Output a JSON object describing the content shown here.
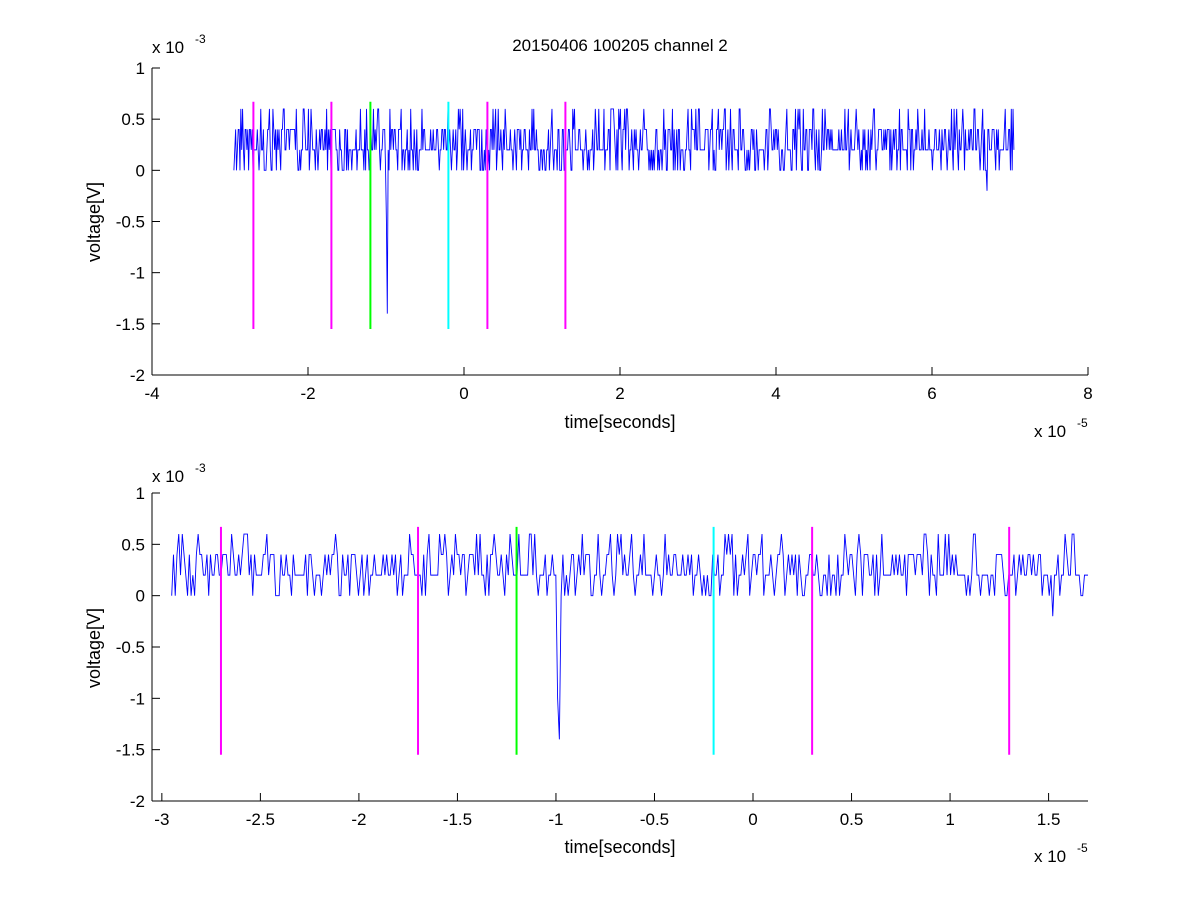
{
  "chart_data": [
    {
      "type": "line",
      "title": "20150406 100205 channel 2",
      "xlabel": "time[seconds]",
      "ylabel": "voltage[V]",
      "x_exponent_label": "x 10",
      "x_exponent": "-5",
      "y_exponent_label": "x 10",
      "y_exponent": "-3",
      "xlim": [
        -4,
        8
      ],
      "ylim": [
        -2,
        1
      ],
      "xticks": [
        "-4",
        "-2",
        "0",
        "2",
        "4",
        "6",
        "8"
      ],
      "yticks": [
        "-2",
        "-1.5",
        "-1",
        "-0.5",
        "0",
        "0.5",
        "1"
      ],
      "series": [
        {
          "color": "#0000ff",
          "x_range": [
            -2.95,
            7.05
          ],
          "baseline": 0.2,
          "quantum": 0.2,
          "noise_amplitude": 0.25,
          "features": [
            {
              "x": -0.98,
              "y": -1.4
            },
            {
              "x": -0.99,
              "y": -0.5
            },
            {
              "x": 6.4,
              "y": 0.6
            },
            {
              "x": 6.7,
              "y": -0.2
            }
          ]
        }
      ],
      "markers": [
        {
          "x": -2.7,
          "color": "#ff00ff",
          "y_range": [
            -1.55,
            0.67
          ]
        },
        {
          "x": -1.7,
          "color": "#ff00ff",
          "y_range": [
            -1.55,
            0.67
          ]
        },
        {
          "x": -1.2,
          "color": "#00ff00",
          "y_range": [
            -1.55,
            0.67
          ]
        },
        {
          "x": -0.2,
          "color": "#00ffff",
          "y_range": [
            -1.55,
            0.67
          ]
        },
        {
          "x": 0.3,
          "color": "#ff00ff",
          "y_range": [
            -1.55,
            0.67
          ]
        },
        {
          "x": 1.3,
          "color": "#ff00ff",
          "y_range": [
            -1.55,
            0.67
          ]
        }
      ]
    },
    {
      "type": "line",
      "title": "",
      "xlabel": "time[seconds]",
      "ylabel": "voltage[V]",
      "x_exponent_label": "x 10",
      "x_exponent": "-5",
      "y_exponent_label": "x 10",
      "y_exponent": "-3",
      "xlim": [
        -3.05,
        1.7
      ],
      "ylim": [
        -2,
        1
      ],
      "xticks": [
        "-3",
        "-2.5",
        "-2",
        "-1.5",
        "-1",
        "-0.5",
        "0",
        "0.5",
        "1",
        "1.5"
      ],
      "yticks": [
        "-2",
        "-1.5",
        "-1",
        "-0.5",
        "0",
        "0.5",
        "1"
      ],
      "series": [
        {
          "color": "#0000ff",
          "x_range": [
            -2.95,
            1.7
          ],
          "baseline": 0.2,
          "quantum": 0.2,
          "noise_amplitude": 0.22,
          "features": [
            {
              "x": -0.98,
              "y": -1.4
            },
            {
              "x": -0.99,
              "y": -1.0
            },
            {
              "x": -2.9,
              "y": 0.6
            },
            {
              "x": 1.12,
              "y": 0.6
            },
            {
              "x": 1.52,
              "y": -0.2
            }
          ]
        }
      ],
      "markers": [
        {
          "x": -2.7,
          "color": "#ff00ff",
          "y_range": [
            -1.55,
            0.67
          ]
        },
        {
          "x": -1.7,
          "color": "#ff00ff",
          "y_range": [
            -1.55,
            0.67
          ]
        },
        {
          "x": -1.2,
          "color": "#00ff00",
          "y_range": [
            -1.55,
            0.67
          ]
        },
        {
          "x": -0.2,
          "color": "#00ffff",
          "y_range": [
            -1.55,
            0.67
          ]
        },
        {
          "x": 0.3,
          "color": "#ff00ff",
          "y_range": [
            -1.55,
            0.67
          ]
        },
        {
          "x": 1.3,
          "color": "#ff00ff",
          "y_range": [
            -1.55,
            0.67
          ]
        }
      ]
    }
  ]
}
